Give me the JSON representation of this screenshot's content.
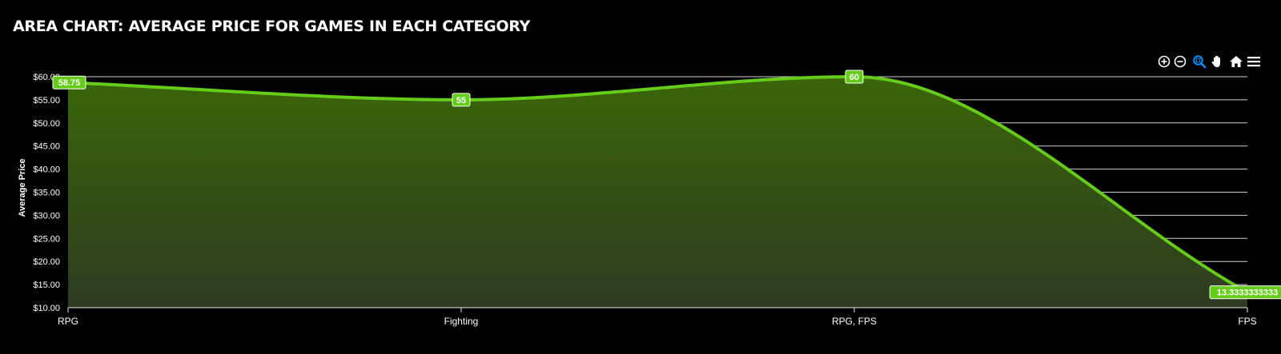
{
  "title": "AREA CHART: AVERAGE PRICE FOR GAMES IN EACH CATEGORY",
  "toolbar": {
    "icons": [
      "zoom-in-icon",
      "zoom-out-icon",
      "selection-zoom-icon",
      "pan-icon",
      "home-icon",
      "menu-icon"
    ],
    "active_color": "#008ffb",
    "icon_color": "#ffffff"
  },
  "colors": {
    "line": "#66cc1a",
    "area_top": "#3a6608",
    "area_bottom": "#2e3a22",
    "grid": "#e6e6e6",
    "label_bg": "#66cc1a",
    "label_text": "#ffffff",
    "axis_text": "#ffffff"
  },
  "chart_data": {
    "type": "area",
    "title": "AREA CHART: AVERAGE PRICE FOR GAMES IN EACH CATEGORY",
    "xlabel": "",
    "ylabel": "Average Price",
    "categories": [
      "RPG",
      "Fighting",
      "RPG, FPS",
      "FPS"
    ],
    "series": [
      {
        "values": [
          58.75,
          55,
          60,
          13.333333333333334
        ],
        "labels": [
          "58.75",
          "55",
          "60",
          "13.3333333333"
        ]
      }
    ],
    "ylim": [
      10,
      60
    ],
    "yticks": [
      "$10.00",
      "$15.00",
      "$20.00",
      "$25.00",
      "$30.00",
      "$35.00",
      "$40.00",
      "$45.00",
      "$50.00",
      "$55.00",
      "$60.00"
    ],
    "grid": true,
    "legend": "none",
    "curve": "smooth"
  }
}
